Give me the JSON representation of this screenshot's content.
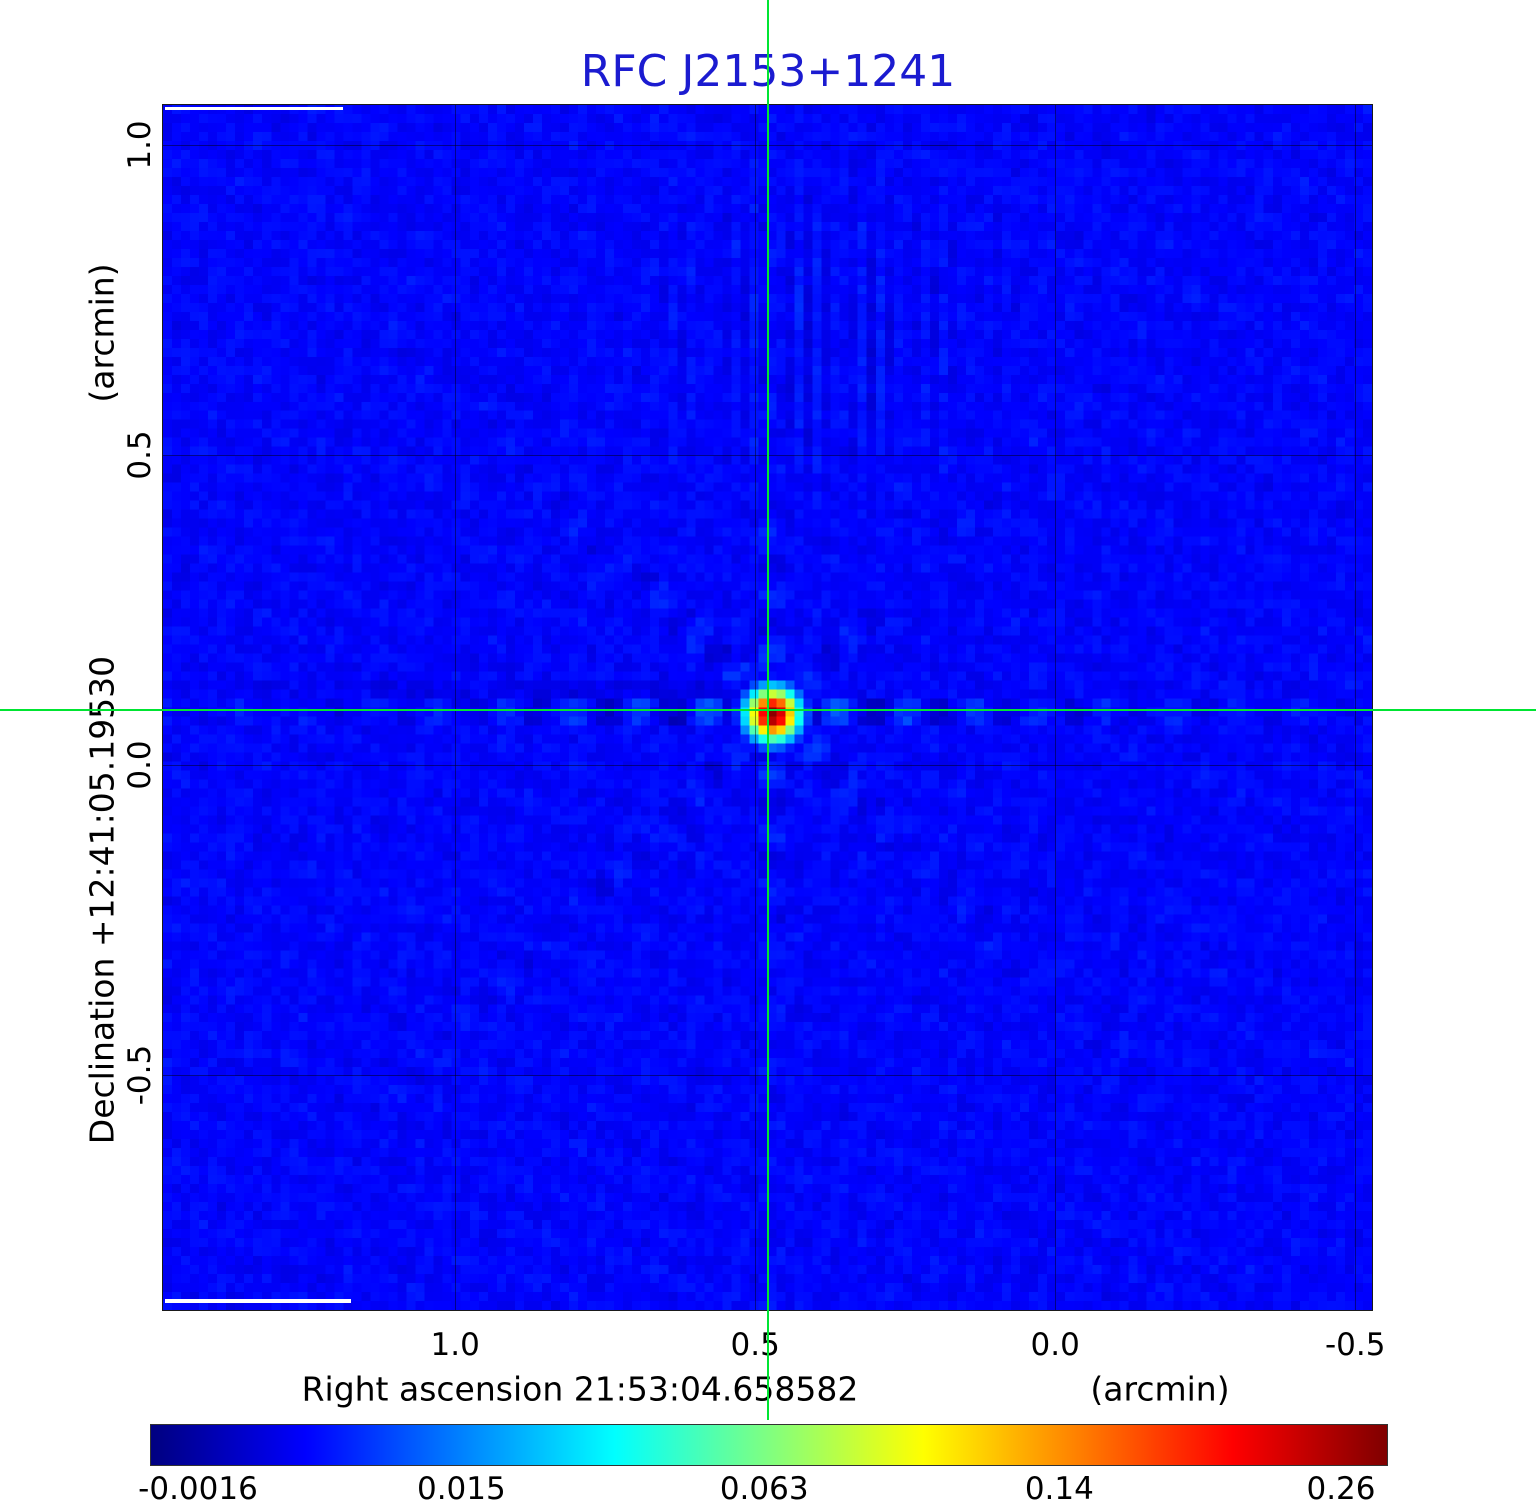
{
  "title": "RFC J2153+1241",
  "colors": {
    "title_blue": "#1b1bd0",
    "crosshair_green": "#00e532",
    "page_background": "#ffffff"
  },
  "y_axis": {
    "unit": "(arcmin)",
    "label": "Declination  +12:41:05.19530",
    "ticks": [
      "1.0",
      "0.5",
      "0.0",
      "-0.5"
    ]
  },
  "x_axis": {
    "unit": "(arcmin)",
    "label": "Right ascension  21:53:04.658582",
    "ticks": [
      "1.0",
      "0.5",
      "0.0",
      "-0.5"
    ]
  },
  "colorbar": {
    "tick_labels": [
      "-0.0016",
      "0.015",
      "0.063",
      "0.14",
      "0.26"
    ]
  },
  "chart_data": {
    "type": "heatmap",
    "title": "RFC J2153+1241",
    "xlabel": "Right ascension 21:53:04.658582 (arcmin)",
    "ylabel": "Declination +12:41:05.19530 (arcmin)",
    "x_range": [
      1.487,
      -0.528
    ],
    "y_range": [
      -0.879,
      1.065
    ],
    "x_ticks": [
      1.0,
      0.5,
      0.0,
      -0.5
    ],
    "y_ticks": [
      1.0,
      0.5,
      0.0,
      -0.5
    ],
    "grid": true,
    "legend": false,
    "colormap": "jet",
    "intensity_min": -0.0016,
    "intensity_max": 0.26,
    "colorbar_ticks": [
      -0.0016,
      0.015,
      0.063,
      0.14,
      0.26
    ],
    "peak": {
      "x_arcmin": 0.478,
      "y_arcmin": 0.089,
      "value_jy": 0.26
    },
    "crosshair": {
      "x_arcmin": 0.478,
      "y_arcmin": 0.089
    },
    "background_value_jy": 0.0
  }
}
